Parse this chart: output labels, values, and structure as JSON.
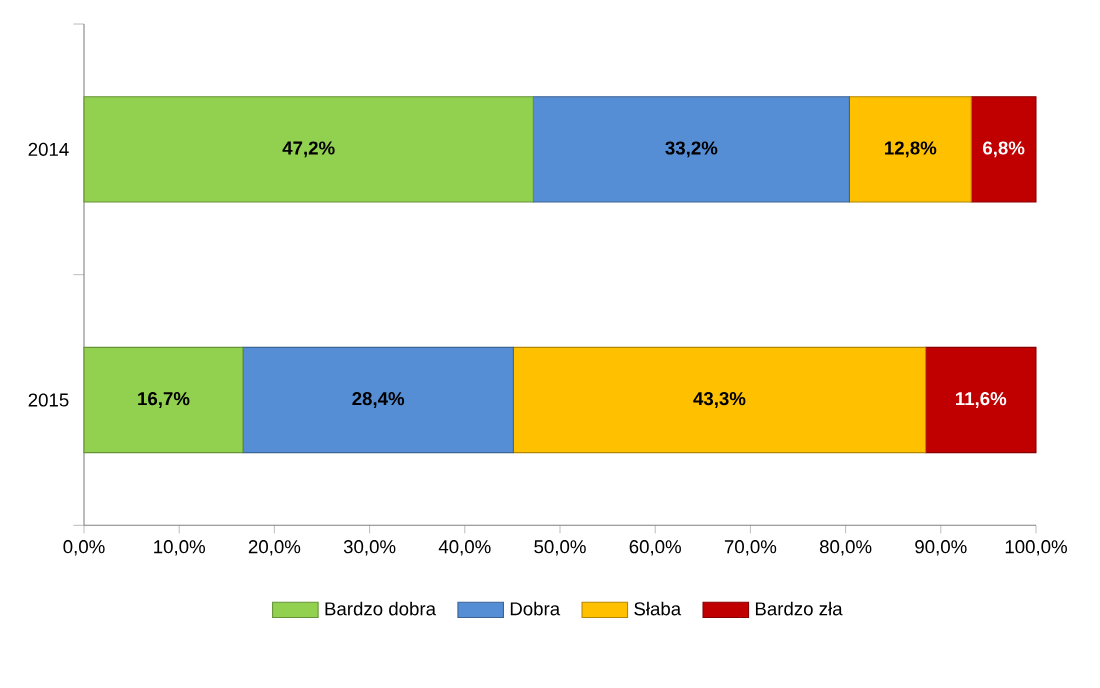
{
  "chart_data": {
    "type": "bar",
    "orientation": "horizontal",
    "stacked": true,
    "categories": [
      "2014",
      "2015"
    ],
    "series": [
      {
        "name": "Bardzo dobra",
        "color": "#92d050",
        "values": [
          47.2,
          16.7
        ],
        "value_labels": [
          "47,2%",
          "16,7%"
        ]
      },
      {
        "name": "Dobra",
        "color": "#558ed5",
        "values": [
          33.2,
          28.4
        ],
        "value_labels": [
          "33,2%",
          "28,4%"
        ]
      },
      {
        "name": "Słaba",
        "color": "#ffc000",
        "values": [
          12.8,
          43.3
        ],
        "value_labels": [
          "12,8%",
          "43,3%"
        ]
      },
      {
        "name": "Bardzo zła",
        "color": "#c00000",
        "values": [
          6.8,
          11.6
        ],
        "value_labels": [
          "6,8%",
          "11,6%"
        ]
      }
    ],
    "xlim": [
      0,
      100
    ],
    "xticks": [
      {
        "value": 0,
        "label": "0,0%"
      },
      {
        "value": 10,
        "label": "10,0%"
      },
      {
        "value": 20,
        "label": "20,0%"
      },
      {
        "value": 30,
        "label": "30,0%"
      },
      {
        "value": 40,
        "label": "40,0%"
      },
      {
        "value": 50,
        "label": "50,0%"
      },
      {
        "value": 60,
        "label": "60,0%"
      },
      {
        "value": 70,
        "label": "70,0%"
      },
      {
        "value": 80,
        "label": "80,0%"
      },
      {
        "value": 90,
        "label": "90,0%"
      },
      {
        "value": 100,
        "label": "100,0%"
      }
    ],
    "legend": "bottom",
    "grid": false
  }
}
